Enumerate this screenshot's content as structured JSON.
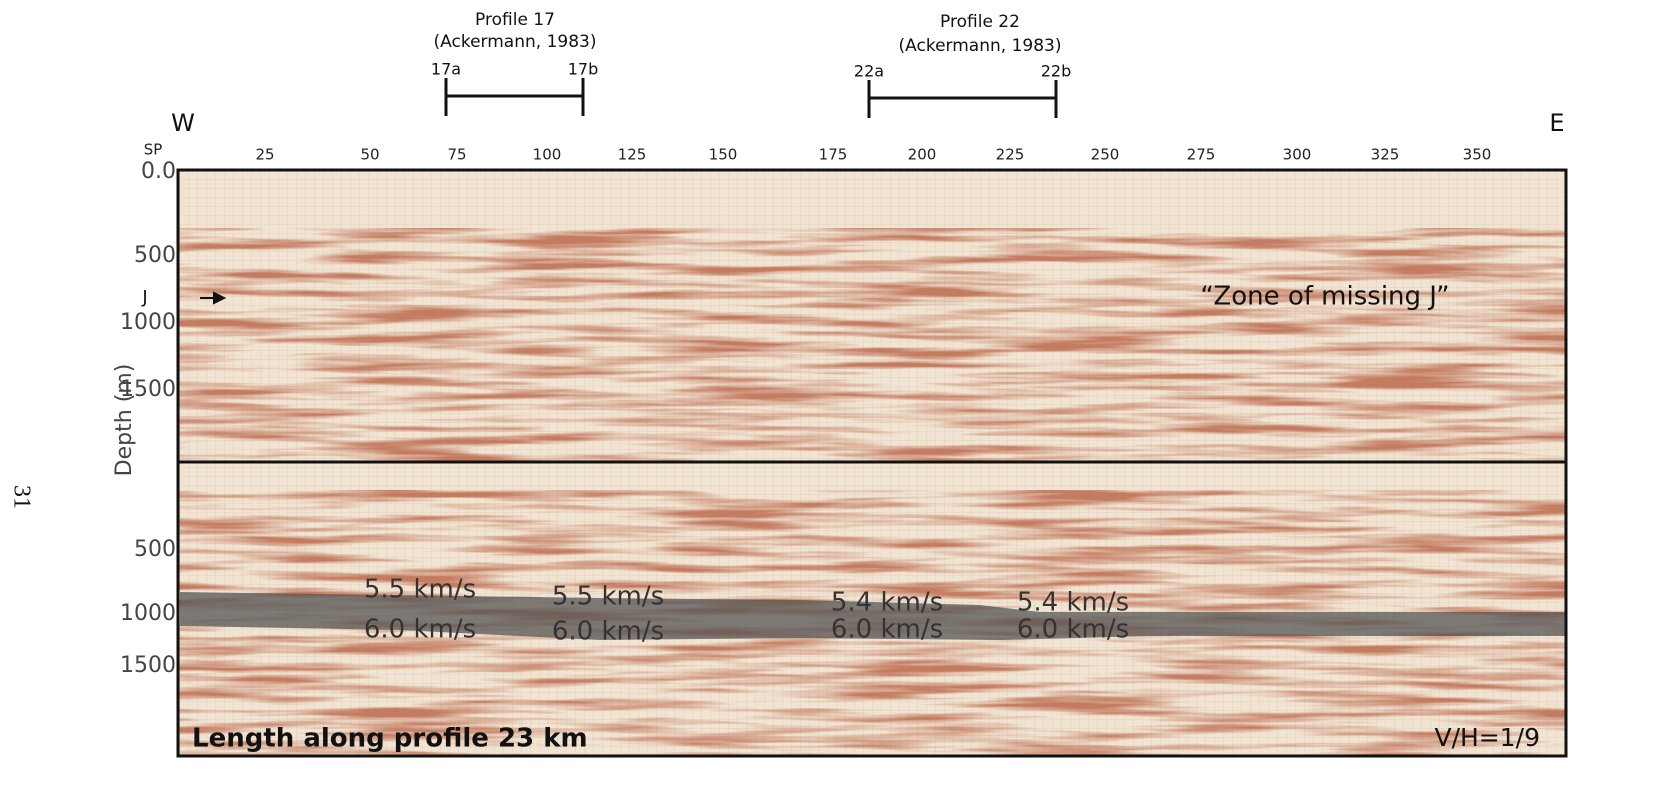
{
  "figure_label": "31",
  "west": "W",
  "east": "E",
  "sp_label": "SP",
  "profiles": [
    {
      "title": "Profile 17",
      "citation": "(Ackermann, 1983)",
      "start": "17a",
      "end": "17b"
    },
    {
      "title": "Profile 22",
      "citation": "(Ackermann, 1983)",
      "start": "22a",
      "end": "22b"
    }
  ],
  "sp_ticks": [
    "25",
    "50",
    "75",
    "100",
    "125",
    "150",
    "175",
    "200",
    "225",
    "250",
    "275",
    "300",
    "325",
    "350"
  ],
  "depth_axis_label": "Depth (m)",
  "top_panel": {
    "depth_ticks": [
      "0.0",
      "500",
      "1000",
      "1500"
    ],
    "marker": "J",
    "annotation": "“Zone of missing J”"
  },
  "bottom_panel": {
    "depth_ticks": [
      "500",
      "1000",
      "1500"
    ],
    "velocity_labels": [
      {
        "upper": "5.5 km/s",
        "lower": "6.0 km/s"
      },
      {
        "upper": "5.5 km/s",
        "lower": "6.0 km/s"
      },
      {
        "upper": "5.4 km/s",
        "lower": "6.0 km/s"
      },
      {
        "upper": "5.4 km/s",
        "lower": "6.0 km/s"
      }
    ]
  },
  "footer": {
    "length": "Length along profile 23 km",
    "ratio": "V/H=1/9"
  }
}
